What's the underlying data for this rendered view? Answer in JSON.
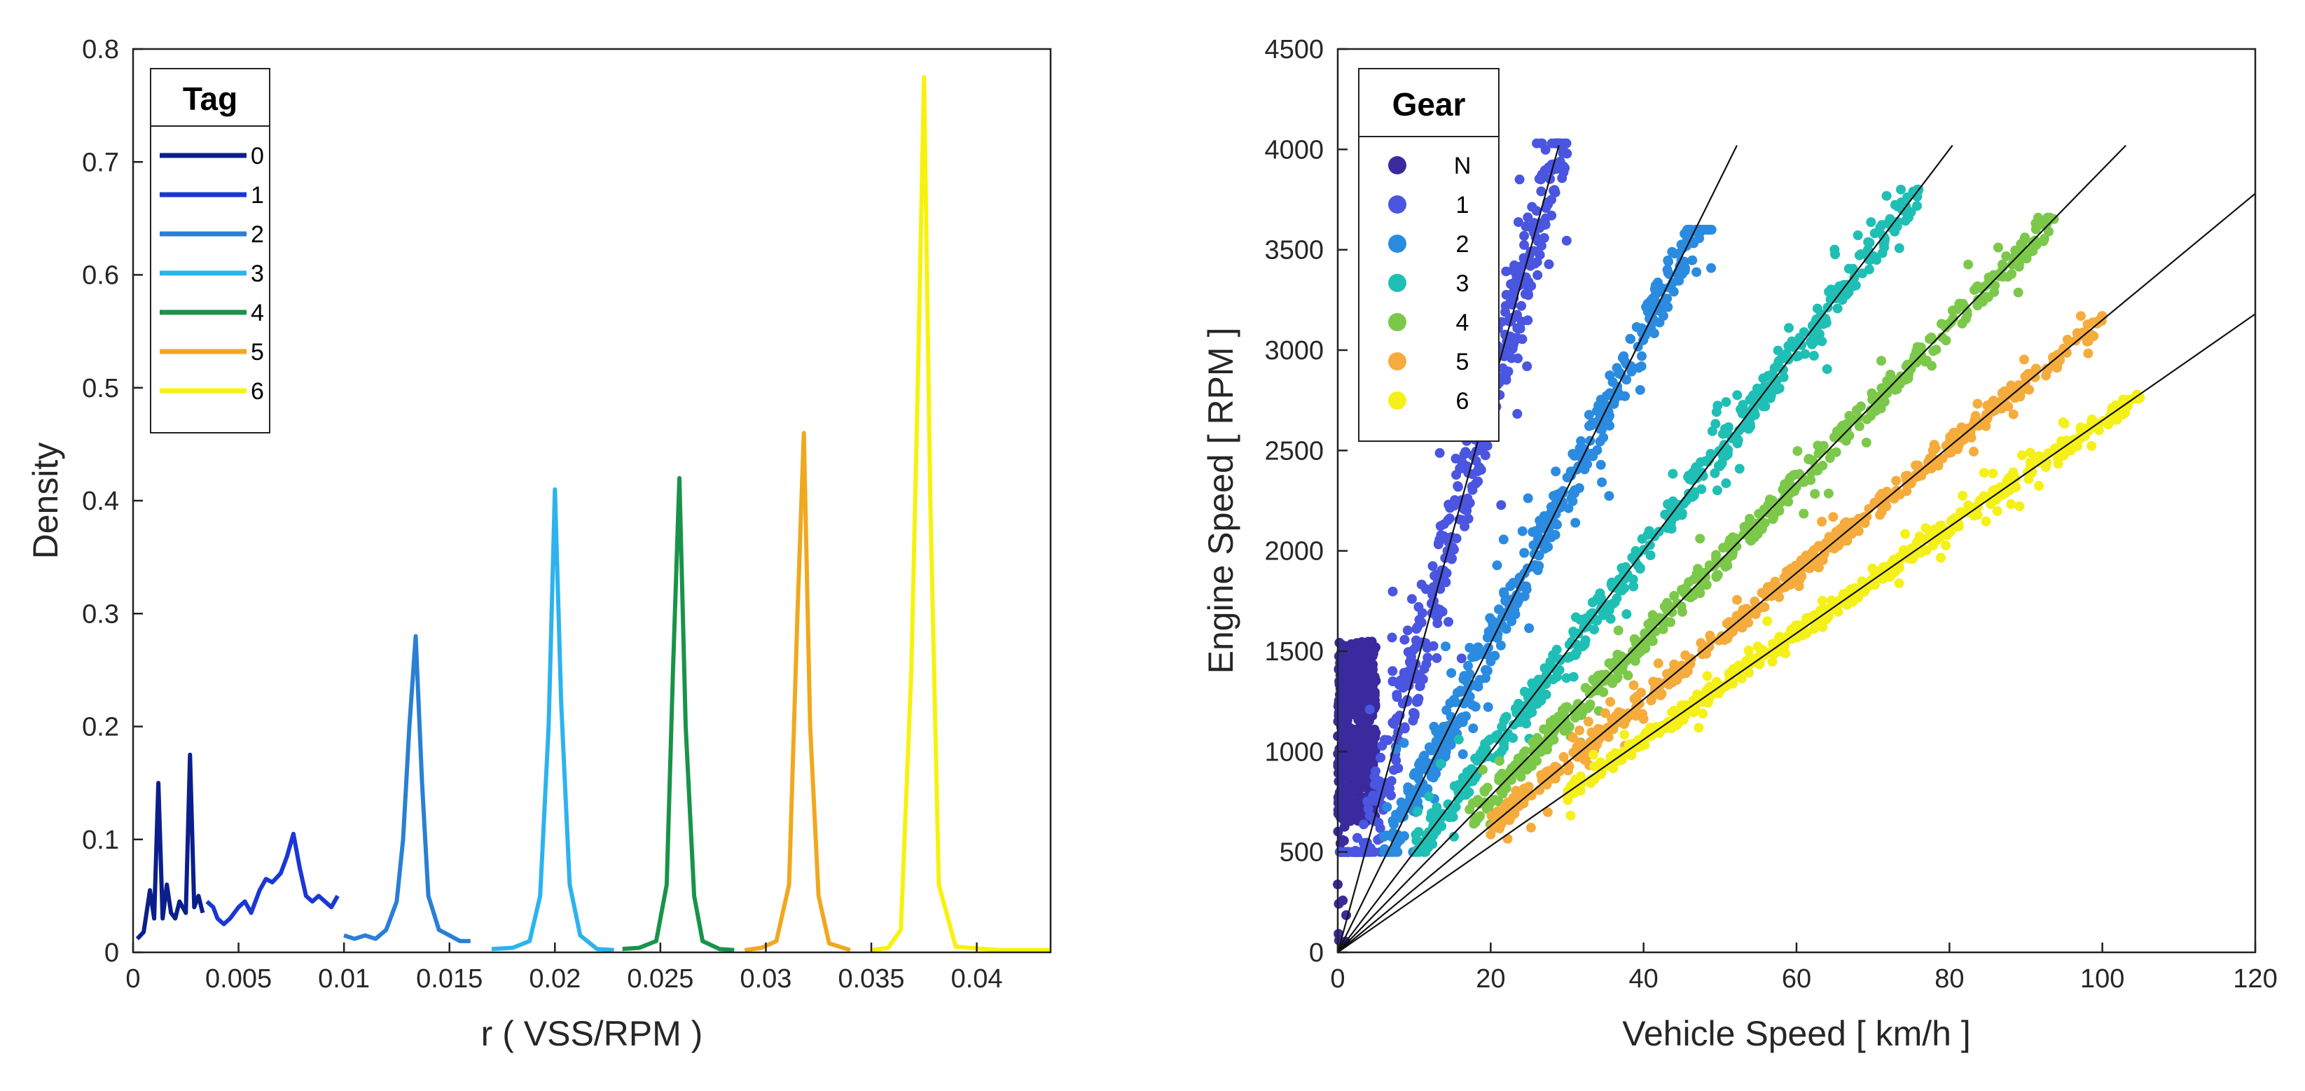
{
  "chart_data": [
    {
      "type": "line",
      "title": "",
      "xlabel": "r ( VSS/RPM )",
      "ylabel": "Density",
      "xlim": [
        0,
        0.0435
      ],
      "ylim": [
        0,
        0.8
      ],
      "xticks": [
        0,
        0.005,
        0.01,
        0.015,
        0.02,
        0.025,
        0.03,
        0.035,
        0.04
      ],
      "xtick_labels": [
        "0",
        "0.005",
        "0.01",
        "0.015",
        "0.02",
        "0.025",
        "0.03",
        "0.035",
        "0.04"
      ],
      "yticks": [
        0,
        0.1,
        0.2,
        0.3,
        0.4,
        0.5,
        0.6,
        0.7,
        0.8
      ],
      "ytick_labels": [
        "0",
        "0.1",
        "0.2",
        "0.3",
        "0.4",
        "0.5",
        "0.6",
        "0.7",
        "0.8"
      ],
      "legend": {
        "title": "Tag",
        "location": "top-left"
      },
      "series": [
        {
          "name": "0",
          "color": "#0b1f8c",
          "points": [
            [
              0.0002,
              0.012
            ],
            [
              0.0005,
              0.018
            ],
            [
              0.0008,
              0.055
            ],
            [
              0.001,
              0.03
            ],
            [
              0.0012,
              0.15
            ],
            [
              0.0014,
              0.03
            ],
            [
              0.0016,
              0.06
            ],
            [
              0.0018,
              0.035
            ],
            [
              0.002,
              0.03
            ],
            [
              0.0022,
              0.045
            ],
            [
              0.0025,
              0.035
            ],
            [
              0.0027,
              0.175
            ],
            [
              0.0029,
              0.04
            ],
            [
              0.0031,
              0.05
            ],
            [
              0.0033,
              0.035
            ]
          ]
        },
        {
          "name": "1",
          "color": "#1a37d6",
          "points": [
            [
              0.0035,
              0.045
            ],
            [
              0.0038,
              0.04
            ],
            [
              0.004,
              0.03
            ],
            [
              0.0043,
              0.025
            ],
            [
              0.0046,
              0.03
            ],
            [
              0.005,
              0.04
            ],
            [
              0.0053,
              0.045
            ],
            [
              0.0056,
              0.035
            ],
            [
              0.006,
              0.055
            ],
            [
              0.0063,
              0.065
            ],
            [
              0.0066,
              0.062
            ],
            [
              0.007,
              0.07
            ],
            [
              0.0073,
              0.085
            ],
            [
              0.0076,
              0.105
            ],
            [
              0.0079,
              0.075
            ],
            [
              0.0082,
              0.05
            ],
            [
              0.0085,
              0.045
            ],
            [
              0.0088,
              0.05
            ],
            [
              0.0091,
              0.045
            ],
            [
              0.0094,
              0.04
            ],
            [
              0.0097,
              0.05
            ]
          ]
        },
        {
          "name": "2",
          "color": "#2a7fd5",
          "points": [
            [
              0.01,
              0.015
            ],
            [
              0.0105,
              0.012
            ],
            [
              0.011,
              0.015
            ],
            [
              0.0115,
              0.012
            ],
            [
              0.012,
              0.02
            ],
            [
              0.0125,
              0.045
            ],
            [
              0.0128,
              0.1
            ],
            [
              0.0131,
              0.2
            ],
            [
              0.0134,
              0.28
            ],
            [
              0.0137,
              0.15
            ],
            [
              0.014,
              0.05
            ],
            [
              0.0145,
              0.02
            ],
            [
              0.015,
              0.015
            ],
            [
              0.0155,
              0.01
            ],
            [
              0.016,
              0.01
            ]
          ]
        },
        {
          "name": "3",
          "color": "#2cb3ee",
          "points": [
            [
              0.017,
              0.003
            ],
            [
              0.018,
              0.004
            ],
            [
              0.0188,
              0.01
            ],
            [
              0.0193,
              0.05
            ],
            [
              0.0197,
              0.2
            ],
            [
              0.02,
              0.41
            ],
            [
              0.0203,
              0.22
            ],
            [
              0.0207,
              0.06
            ],
            [
              0.0212,
              0.015
            ],
            [
              0.022,
              0.003
            ],
            [
              0.0228,
              0.002
            ]
          ]
        },
        {
          "name": "4",
          "color": "#19934a",
          "points": [
            [
              0.0232,
              0.003
            ],
            [
              0.024,
              0.004
            ],
            [
              0.0248,
              0.01
            ],
            [
              0.0253,
              0.06
            ],
            [
              0.0256,
              0.25
            ],
            [
              0.0259,
              0.42
            ],
            [
              0.0262,
              0.2
            ],
            [
              0.0266,
              0.05
            ],
            [
              0.027,
              0.01
            ],
            [
              0.0278,
              0.003
            ],
            [
              0.0285,
              0.002
            ]
          ]
        },
        {
          "name": "5",
          "color": "#f0a81e",
          "points": [
            [
              0.029,
              0.002
            ],
            [
              0.0298,
              0.004
            ],
            [
              0.0305,
              0.01
            ],
            [
              0.0311,
              0.06
            ],
            [
              0.0315,
              0.3
            ],
            [
              0.0318,
              0.46
            ],
            [
              0.0321,
              0.2
            ],
            [
              0.0325,
              0.05
            ],
            [
              0.033,
              0.008
            ],
            [
              0.034,
              0.002
            ]
          ]
        },
        {
          "name": "6",
          "color": "#f7f20d",
          "points": [
            [
              0.035,
              0.002
            ],
            [
              0.0358,
              0.004
            ],
            [
              0.0364,
              0.02
            ],
            [
              0.0369,
              0.25
            ],
            [
              0.0372,
              0.5
            ],
            [
              0.0375,
              0.775
            ],
            [
              0.0378,
              0.4
            ],
            [
              0.0382,
              0.06
            ],
            [
              0.039,
              0.005
            ],
            [
              0.041,
              0.002
            ],
            [
              0.0435,
              0.002
            ]
          ]
        }
      ]
    },
    {
      "type": "scatter",
      "title": "",
      "xlabel": "Vehicle Speed [ km/h ]",
      "ylabel": "Engine Speed   [ RPM ]",
      "xlim": [
        0,
        120
      ],
      "ylim": [
        0,
        4500
      ],
      "xticks": [
        0,
        20,
        40,
        60,
        80,
        100,
        120
      ],
      "xtick_labels": [
        "0",
        "20",
        "40",
        "60",
        "80",
        "100",
        "120"
      ],
      "yticks": [
        0,
        500,
        1000,
        1500,
        2000,
        2500,
        3000,
        3500,
        4000,
        4500
      ],
      "ytick_labels": [
        "0",
        "500",
        "1000",
        "1500",
        "2000",
        "2500",
        "3000",
        "3500",
        "4000",
        "4500"
      ],
      "legend": {
        "title": "Gear",
        "location": "top-left"
      },
      "reference_lines": [
        {
          "gear": "1",
          "rpm_per_kmh": 139
        },
        {
          "gear": "2",
          "rpm_per_kmh": 77
        },
        {
          "gear": "3",
          "rpm_per_kmh": 50
        },
        {
          "gear": "4",
          "rpm_per_kmh": 39
        },
        {
          "gear": "5",
          "rpm_per_kmh": 31.5
        },
        {
          "gear": "6",
          "rpm_per_kmh": 26.5
        }
      ],
      "series": [
        {
          "name": "N",
          "color": "#3a2a9e",
          "speed_range": [
            0,
            5
          ],
          "rpm_range": [
            650,
            1550
          ]
        },
        {
          "name": "1",
          "color": "#4a55e0",
          "speed_range": [
            0,
            30
          ],
          "ratio": 139,
          "max_rpm": 4030
        },
        {
          "name": "2",
          "color": "#2b8be0",
          "speed_range": [
            6,
            49
          ],
          "ratio": 77,
          "max_rpm": 3600
        },
        {
          "name": "3",
          "color": "#1fbfb5",
          "speed_range": [
            10,
            76
          ],
          "ratio": 50,
          "max_rpm": 3800
        },
        {
          "name": "4",
          "color": "#7cc84a",
          "speed_range": [
            17,
            94
          ],
          "ratio": 39,
          "max_rpm": 3660
        },
        {
          "name": "5",
          "color": "#f5ac3c",
          "speed_range": [
            20,
            100
          ],
          "ratio": 31.5,
          "max_rpm": 3170
        },
        {
          "name": "6",
          "color": "#f5f018",
          "speed_range": [
            30,
            105
          ],
          "ratio": 26.5,
          "max_rpm": 2790
        }
      ]
    }
  ]
}
